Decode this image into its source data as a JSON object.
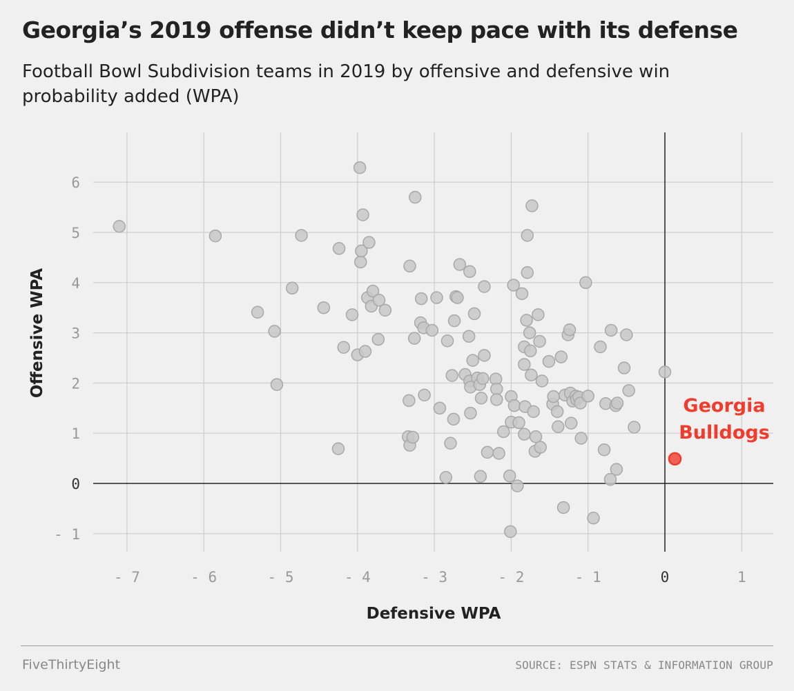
{
  "header": {
    "title": "Georgia’s 2019 offense didn’t keep pace with its defense",
    "subtitle": "Football Bowl Subdivision teams in 2019 by offensive and defensive win probability added (WPA)"
  },
  "footer": {
    "brand": "FiveThirtyEight",
    "source": "SOURCE: ESPN STATS & INFORMATION GROUP"
  },
  "colors": {
    "background": "#f0f0f0",
    "point_fill": "#c8c8c8",
    "point_stroke": "#a8a8a8",
    "highlight": "#f03c2d",
    "grid": "#cdcdcd",
    "axis": "#222222",
    "tick_text": "#999999"
  },
  "chart_data": {
    "type": "scatter",
    "xlabel": "Defensive WPA",
    "ylabel": "Offensive WPA",
    "xlim": [
      -7.35,
      1.4
    ],
    "ylim": [
      -1.4,
      6.9
    ],
    "xticks": [
      -7,
      -6,
      -5,
      -4,
      -3,
      -2,
      -1,
      0,
      1
    ],
    "yticks": [
      -1,
      0,
      1,
      2,
      3,
      4,
      5,
      6
    ],
    "xtick_labels": [
      "- 7",
      "- 6",
      "- 5",
      "- 4",
      "- 3",
      "- 2",
      "- 1",
      "0",
      "1"
    ],
    "ytick_labels": [
      "- 1",
      "0",
      "1",
      "2",
      "3",
      "4",
      "5",
      "6"
    ],
    "grid": true,
    "highlight": {
      "name": "Georgia Bulldogs",
      "label_lines": [
        "Georgia",
        "Bulldogs"
      ],
      "x": 0.13,
      "y": 0.49
    },
    "points": [
      [
        -7.1,
        5.12
      ],
      [
        -5.85,
        4.93
      ],
      [
        -5.3,
        3.41
      ],
      [
        -5.08,
        3.03
      ],
      [
        -5.05,
        1.97
      ],
      [
        -4.85,
        3.89
      ],
      [
        -4.73,
        4.94
      ],
      [
        -4.44,
        3.5
      ],
      [
        -4.24,
        4.68
      ],
      [
        -4.25,
        0.69
      ],
      [
        -4.18,
        2.71
      ],
      [
        -4.07,
        3.36
      ],
      [
        -4.0,
        2.56
      ],
      [
        -3.97,
        6.29
      ],
      [
        -3.96,
        4.41
      ],
      [
        -3.95,
        4.63
      ],
      [
        -3.93,
        5.35
      ],
      [
        -3.9,
        2.63
      ],
      [
        -3.87,
        3.7
      ],
      [
        -3.85,
        4.8
      ],
      [
        -3.82,
        3.53
      ],
      [
        -3.8,
        3.83
      ],
      [
        -3.72,
        3.65
      ],
      [
        -3.73,
        2.87
      ],
      [
        -3.64,
        3.45
      ],
      [
        -3.34,
        0.93
      ],
      [
        -3.33,
        1.65
      ],
      [
        -3.32,
        0.76
      ],
      [
        -3.32,
        4.33
      ],
      [
        -3.28,
        0.92
      ],
      [
        -3.26,
        2.89
      ],
      [
        -3.25,
        5.7
      ],
      [
        -3.18,
        3.2
      ],
      [
        -3.17,
        3.68
      ],
      [
        -3.14,
        3.1
      ],
      [
        -3.13,
        1.76
      ],
      [
        -3.03,
        3.05
      ],
      [
        -2.97,
        3.7
      ],
      [
        -2.93,
        1.5
      ],
      [
        -2.85,
        0.12
      ],
      [
        -2.83,
        2.84
      ],
      [
        -2.79,
        0.8
      ],
      [
        -2.77,
        2.15
      ],
      [
        -2.75,
        1.28
      ],
      [
        -2.74,
        3.24
      ],
      [
        -2.72,
        3.72
      ],
      [
        -2.7,
        3.7
      ],
      [
        -2.67,
        4.36
      ],
      [
        -2.6,
        2.17
      ],
      [
        -2.55,
        2.93
      ],
      [
        -2.54,
        4.22
      ],
      [
        -2.54,
        2.04
      ],
      [
        -2.53,
        1.92
      ],
      [
        -2.53,
        1.4
      ],
      [
        -2.5,
        2.45
      ],
      [
        -2.48,
        3.38
      ],
      [
        -2.44,
        2.1
      ],
      [
        -2.41,
        1.97
      ],
      [
        -2.4,
        0.14
      ],
      [
        -2.39,
        1.7
      ],
      [
        -2.37,
        2.09
      ],
      [
        -2.35,
        2.55
      ],
      [
        -2.35,
        3.92
      ],
      [
        -2.31,
        0.62
      ],
      [
        -2.2,
        2.08
      ],
      [
        -2.19,
        1.88
      ],
      [
        -2.19,
        1.67
      ],
      [
        -2.16,
        0.6
      ],
      [
        -2.1,
        1.03
      ],
      [
        -2.02,
        0.15
      ],
      [
        -2.01,
        -0.96
      ],
      [
        -2.0,
        1.73
      ],
      [
        -2.0,
        1.22
      ],
      [
        -1.97,
        3.95
      ],
      [
        -1.96,
        1.55
      ],
      [
        -1.92,
        -0.05
      ],
      [
        -1.9,
        1.21
      ],
      [
        -1.86,
        3.78
      ],
      [
        -1.83,
        0.98
      ],
      [
        -1.83,
        2.72
      ],
      [
        -1.83,
        2.37
      ],
      [
        -1.82,
        1.53
      ],
      [
        -1.8,
        3.25
      ],
      [
        -1.79,
        4.94
      ],
      [
        -1.79,
        4.2
      ],
      [
        -1.76,
        3.0
      ],
      [
        -1.75,
        2.64
      ],
      [
        -1.74,
        2.16
      ],
      [
        -1.73,
        5.53
      ],
      [
        -1.71,
        1.43
      ],
      [
        -1.69,
        0.64
      ],
      [
        -1.68,
        0.93
      ],
      [
        -1.65,
        3.36
      ],
      [
        -1.63,
        2.83
      ],
      [
        -1.62,
        0.72
      ],
      [
        -1.6,
        2.04
      ],
      [
        -1.51,
        2.43
      ],
      [
        -1.46,
        1.58
      ],
      [
        -1.45,
        1.73
      ],
      [
        -1.4,
        1.43
      ],
      [
        -1.39,
        1.13
      ],
      [
        -1.35,
        2.52
      ],
      [
        -1.32,
        -0.48
      ],
      [
        -1.3,
        1.76
      ],
      [
        -1.26,
        2.96
      ],
      [
        -1.24,
        3.06
      ],
      [
        -1.23,
        1.8
      ],
      [
        -1.22,
        1.2
      ],
      [
        -1.2,
        1.64
      ],
      [
        -1.16,
        1.74
      ],
      [
        -1.15,
        1.67
      ],
      [
        -1.12,
        1.72
      ],
      [
        -1.1,
        1.6
      ],
      [
        -1.09,
        0.9
      ],
      [
        -1.03,
        4.0
      ],
      [
        -1.0,
        1.74
      ],
      [
        -0.93,
        -0.69
      ],
      [
        -0.84,
        2.72
      ],
      [
        -0.79,
        0.67
      ],
      [
        -0.77,
        1.59
      ],
      [
        -0.7,
        3.05
      ],
      [
        -0.71,
        0.08
      ],
      [
        -0.64,
        1.55
      ],
      [
        -0.62,
        1.6
      ],
      [
        -0.63,
        0.28
      ],
      [
        -0.53,
        2.3
      ],
      [
        -0.5,
        2.96
      ],
      [
        -0.47,
        1.85
      ],
      [
        -0.4,
        1.12
      ],
      [
        0.0,
        2.22
      ]
    ]
  }
}
